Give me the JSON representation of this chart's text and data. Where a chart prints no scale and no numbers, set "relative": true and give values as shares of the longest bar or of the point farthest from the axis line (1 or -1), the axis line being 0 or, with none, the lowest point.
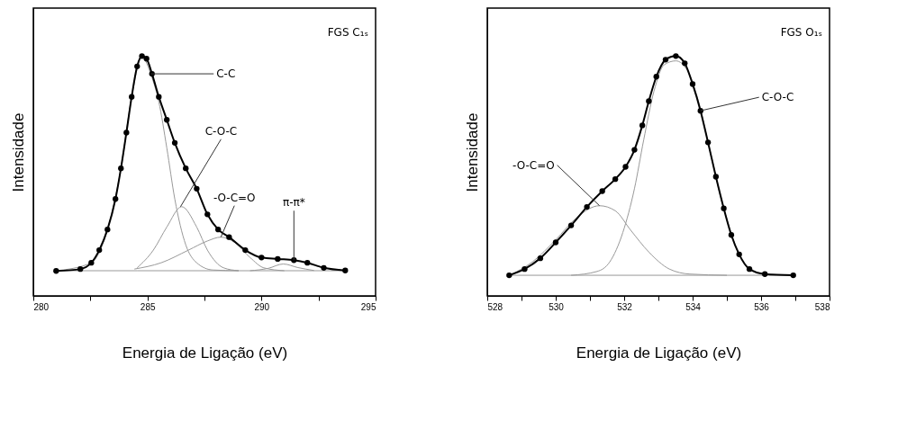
{
  "chart_data": [
    {
      "type": "line",
      "relative": true,
      "xlabel": "Energia de Ligação (eV)",
      "ylabel": "Intensidade",
      "xlim": [
        280,
        295
      ],
      "xticks": [
        280,
        {
          "value": 282.5,
          "label": null
        },
        285,
        {
          "value": 287.5,
          "label": null
        },
        290,
        {
          "value": 292.5,
          "label": null
        },
        295
      ],
      "tick_labels": "x",
      "grid": false,
      "annotations": [
        "FGS C₁ₛ",
        {
          "text": "C-C",
          "x": 285.14,
          "y": 0.926
        },
        {
          "text": "C-O-C",
          "x": 286.45,
          "y": 0.372
        },
        {
          "text": "-O-C=O",
          "x": 288.22,
          "y": 0.245
        },
        {
          "text": "π-π*",
          "x": 291.42,
          "y": 0.149
        }
      ],
      "series": [
        {
          "color": "#999999",
          "marker": "none",
          "x": [
            281.0,
            284.55,
            293.67
          ],
          "values": [
            0.105,
            0.105,
            0.105
          ]
        },
        {
          "color": "#999999",
          "marker": "none",
          "x": [
            281.0,
            282.54,
            283.25,
            283.84,
            284.31,
            284.76,
            285.2,
            285.5,
            285.85,
            286.2,
            286.68,
            287.16,
            287.87,
            289.0
          ],
          "values": [
            0.105,
            0.138,
            0.277,
            0.532,
            0.83,
            0.995,
            0.91,
            0.809,
            0.617,
            0.404,
            0.213,
            0.138,
            0.108,
            0.105
          ]
        },
        {
          "color": "#999999",
          "marker": "none",
          "x": [
            284.55,
            285.26,
            285.85,
            286.5,
            287.16,
            287.63,
            288.34,
            289.0
          ],
          "values": [
            0.117,
            0.191,
            0.287,
            0.372,
            0.287,
            0.191,
            0.117,
            0.105
          ]
        },
        {
          "color": "#999999",
          "marker": "none",
          "x": [
            284.43,
            285.6,
            286.8,
            287.63,
            288.22,
            288.82,
            289.5,
            290.1,
            291.0
          ],
          "values": [
            0.112,
            0.138,
            0.191,
            0.229,
            0.245,
            0.223,
            0.16,
            0.117,
            0.105
          ]
        },
        {
          "color": "#999999",
          "marker": "none",
          "x": [
            289.5,
            290.3,
            290.95,
            291.6,
            292.3
          ],
          "values": [
            0.105,
            0.115,
            0.133,
            0.118,
            0.106
          ]
        },
        {
          "color": "#000000",
          "marker": "circle",
          "x": [
            281.0,
            282.06,
            282.54,
            282.89,
            283.25,
            283.6,
            283.84,
            284.08,
            284.31,
            284.55,
            284.76,
            284.96,
            285.2,
            285.5,
            285.85,
            286.2,
            286.68,
            287.16,
            287.63,
            288.1,
            288.58,
            289.29,
            290.0,
            290.71,
            291.42,
            292.01,
            292.73,
            293.67
          ],
          "values": [
            0.104,
            0.112,
            0.138,
            0.191,
            0.277,
            0.404,
            0.532,
            0.681,
            0.83,
            0.957,
            1.0,
            0.989,
            0.926,
            0.83,
            0.734,
            0.638,
            0.532,
            0.447,
            0.34,
            0.277,
            0.245,
            0.191,
            0.16,
            0.154,
            0.149,
            0.138,
            0.117,
            0.106
          ]
        }
      ]
    },
    {
      "type": "line",
      "relative": true,
      "xlabel": "Energia de Ligação (eV)",
      "ylabel": "Intensidade",
      "xlim": [
        528,
        538
      ],
      "xticks": [
        528,
        {
          "value": 529,
          "label": null
        },
        530,
        {
          "value": 531,
          "label": null
        },
        532,
        {
          "value": 533,
          "label": null
        },
        534,
        {
          "value": 535,
          "label": null
        },
        536,
        {
          "value": 537,
          "label": null
        },
        538
      ],
      "tick_labels": "x",
      "grid": false,
      "annotations": [
        "FGS O₁ₛ",
        {
          "text": "C-O-C",
          "x": 534.23,
          "y": 0.772
        },
        {
          "text": "-O-C=O",
          "x": 531.28,
          "y": 0.376
        }
      ],
      "series": [
        {
          "color": "#999999",
          "marker": "none",
          "x": [
            528.64,
            532.0,
            536.94
          ],
          "values": [
            0.086,
            0.086,
            0.086
          ]
        },
        {
          "color": "#999999",
          "marker": "none",
          "x": [
            528.64,
            529.32,
            530.0,
            530.6,
            531.28,
            531.74,
            532.19,
            532.72,
            533.32,
            533.92,
            535.0
          ],
          "values": [
            0.086,
            0.142,
            0.234,
            0.325,
            0.376,
            0.355,
            0.274,
            0.183,
            0.112,
            0.091,
            0.086
          ]
        },
        {
          "color": "#999999",
          "marker": "none",
          "x": [
            530.45,
            531.21,
            531.58,
            531.96,
            532.3,
            532.57,
            532.87,
            533.17,
            533.51,
            533.85,
            534.15,
            534.45,
            534.91,
            535.36,
            535.66,
            536.11,
            536.94
          ],
          "values": [
            0.086,
            0.102,
            0.142,
            0.264,
            0.447,
            0.65,
            0.853,
            0.964,
            0.98,
            0.939,
            0.822,
            0.64,
            0.365,
            0.173,
            0.112,
            0.091,
            0.086
          ]
        },
        {
          "color": "#000000",
          "marker": "circle",
          "x": [
            528.64,
            529.09,
            529.55,
            530.0,
            530.45,
            530.91,
            531.36,
            531.74,
            532.04,
            532.3,
            532.53,
            532.72,
            532.94,
            533.21,
            533.51,
            533.77,
            534.0,
            534.23,
            534.45,
            534.68,
            534.91,
            535.13,
            535.36,
            535.66,
            536.11,
            536.94
          ],
          "values": [
            0.086,
            0.112,
            0.157,
            0.223,
            0.294,
            0.371,
            0.437,
            0.487,
            0.538,
            0.609,
            0.711,
            0.812,
            0.914,
            0.985,
            1.0,
            0.97,
            0.883,
            0.772,
            0.64,
            0.497,
            0.365,
            0.254,
            0.173,
            0.112,
            0.091,
            0.086
          ]
        }
      ]
    }
  ]
}
